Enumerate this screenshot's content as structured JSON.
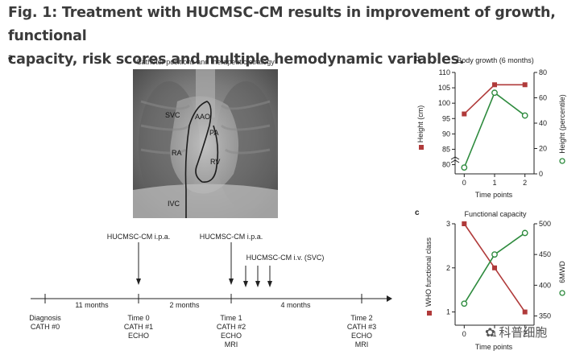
{
  "figure": {
    "title_line1": "Fig. 1: Treatment with HUCMSC-CM results in improvement of growth, functional",
    "title_line2": "capacity, risk scores and multiple hemodynamic variables."
  },
  "panel_a": {
    "letter": "a",
    "caption": "Catheter positions and therapeutic strategy",
    "xray_labels": {
      "svc": "SVC",
      "aao": "AAO",
      "pa": "PA",
      "ra": "RA",
      "rv": "RV",
      "ivc": "IVC"
    },
    "timeline": {
      "events": [
        {
          "lines": [
            "Diagnosis",
            "CATH #0"
          ]
        },
        {
          "lines": [
            "Time 0",
            "CATH #1",
            "ECHO"
          ]
        },
        {
          "lines": [
            "Time 1",
            "CATH #2",
            "ECHO",
            "MRI"
          ]
        },
        {
          "lines": [
            "Time 2",
            "CATH #3",
            "ECHO",
            "MRI"
          ]
        }
      ],
      "intervals": [
        "11 months",
        "2 months",
        "4 months"
      ],
      "treatments": [
        "HUCMSC-CM i.p.a.",
        "HUCMSC-CM i.p.a.",
        "HUCMSC-CM i.v. (SVC)"
      ]
    }
  },
  "chart_data": [
    {
      "panel": "b",
      "type": "line",
      "title": "Body growth (6 months)",
      "xlabel": "Time points",
      "x": [
        0,
        1,
        2
      ],
      "xlim": [
        -0.3,
        2.3
      ],
      "series": [
        {
          "name": "Height (cm)",
          "axis": "left",
          "marker": "square",
          "color": "#b03a3a",
          "values": [
            96.5,
            106,
            106
          ]
        },
        {
          "name": "Height (percentile)",
          "axis": "right",
          "marker": "circle-open",
          "color": "#2e8b3e",
          "values": [
            5,
            64,
            46
          ]
        }
      ],
      "y_left": {
        "label": "Height (cm)",
        "ylim": [
          77,
          110
        ],
        "ticks": [
          80,
          85,
          90,
          95,
          100,
          105,
          110
        ],
        "axis_break": true
      },
      "y_right": {
        "label": "Height (percentile)",
        "ylim": [
          0,
          80
        ],
        "ticks": [
          0,
          20,
          40,
          60,
          80
        ]
      }
    },
    {
      "panel": "c",
      "type": "line",
      "title": "Functional capacity",
      "xlabel": "Time points",
      "x": [
        0,
        1,
        2
      ],
      "xlim": [
        -0.3,
        2.3
      ],
      "series": [
        {
          "name": "WHO functional class",
          "axis": "left",
          "marker": "square",
          "color": "#b03a3a",
          "values": [
            3,
            2,
            1
          ]
        },
        {
          "name": "6MWD",
          "axis": "right",
          "marker": "circle-open",
          "color": "#2e8b3e",
          "values": [
            370,
            450,
            485
          ]
        }
      ],
      "y_left": {
        "label": "WHO functional class",
        "ylim": [
          0.7,
          3
        ],
        "ticks": [
          1,
          2,
          3
        ]
      },
      "y_right": {
        "label": "6MWD",
        "ylim": [
          335,
          500
        ],
        "ticks": [
          350,
          400,
          450,
          500
        ]
      }
    }
  ],
  "panel_letters": {
    "b": "b",
    "c": "c"
  },
  "x_ticks": [
    "0",
    "1",
    "2"
  ],
  "watermark": "科普细胞",
  "colors": {
    "red": "#b03a3a",
    "green": "#2e8b3e",
    "title": "#3b3b3b"
  }
}
